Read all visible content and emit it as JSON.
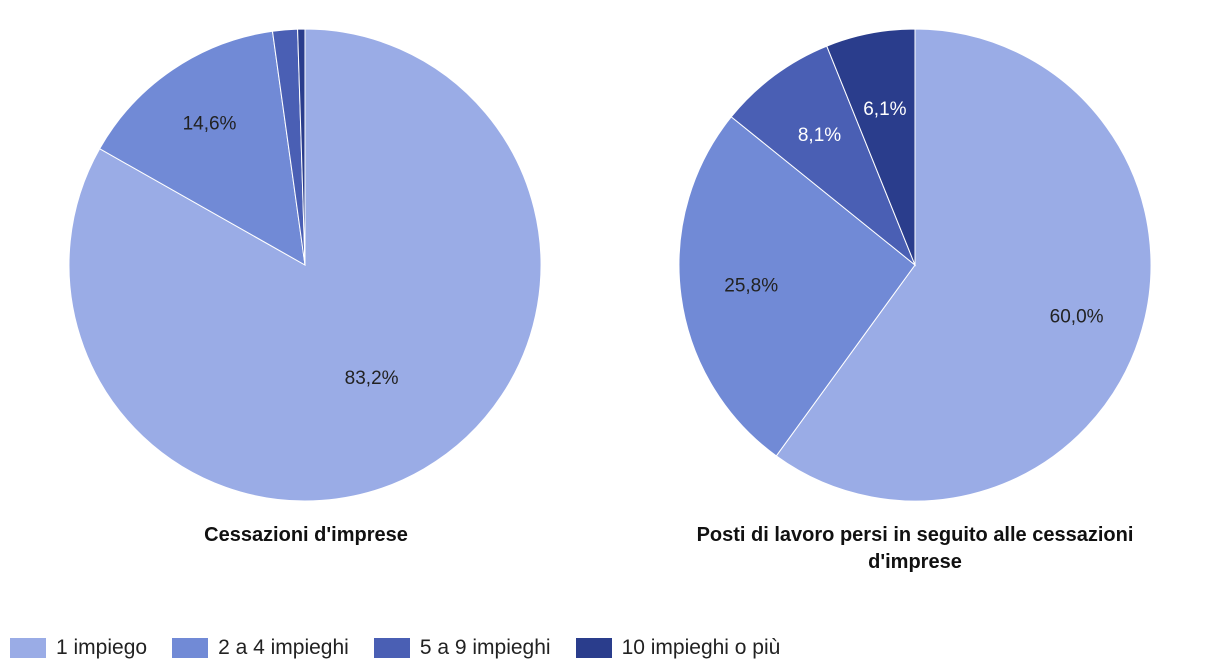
{
  "chart_data": [
    {
      "type": "pie",
      "title": "Cessazioni d'imprese",
      "categories": [
        "1 impiego",
        "2 a 4 impieghi",
        "5 a 9 impieghi",
        "10 impieghi o più"
      ],
      "values": [
        83.2,
        14.6,
        1.7,
        0.5
      ],
      "labels": [
        "83,2%",
        "14,6%",
        "",
        ""
      ]
    },
    {
      "type": "pie",
      "title": "Posti di lavoro persi in seguito alle cessazioni d'imprese",
      "categories": [
        "1 impiego",
        "2 a 4 impieghi",
        "5 a 9 impieghi",
        "10 impieghi o più"
      ],
      "values": [
        60.0,
        25.8,
        8.1,
        6.1
      ],
      "labels": [
        "60,0%",
        "25,8%",
        "8,1%",
        "6,1%"
      ]
    }
  ],
  "legend": {
    "position": "bottom-left",
    "items": [
      {
        "label": "1 impiego",
        "color": "#9aace6"
      },
      {
        "label": "2 a 4 impieghi",
        "color": "#718ad6"
      },
      {
        "label": "5 a 9 impieghi",
        "color": "#4a5fb4"
      },
      {
        "label": "10 impieghi o più",
        "color": "#2a3d8c"
      }
    ]
  },
  "label_colors": [
    "#222222",
    "#222222",
    "#ffffff",
    "#ffffff"
  ]
}
